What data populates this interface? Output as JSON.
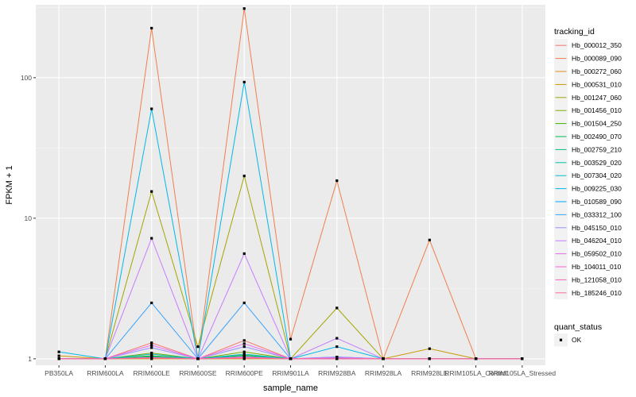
{
  "chart_data": {
    "type": "line",
    "title": "",
    "xlabel": "sample_name",
    "ylabel": "FPKM + 1",
    "y_scale": "log10",
    "ylim": [
      0.9,
      330
    ],
    "y_ticks": [
      1,
      10,
      100
    ],
    "y_tick_labels": [
      "1",
      "10",
      "100"
    ],
    "grid": true,
    "legend_position": "right",
    "categories": [
      "PB350LA",
      "RRIM600LA",
      "RRIM600LE",
      "RRIM600SE",
      "RRIM600PE",
      "RRIM901LA",
      "RRIM928BA",
      "RRIM928LA",
      "RRIM928LE",
      "RRIM105LA_Control",
      "RRIM105LA_Stressed"
    ],
    "legend": {
      "color_title": "tracking_id",
      "shape_title": "quant_status",
      "shape_entries": [
        "OK"
      ]
    },
    "series": [
      {
        "name": "Hb_000012_350",
        "color": "#F8766D",
        "values": [
          1,
          1,
          1.3,
          1,
          1.35,
          1,
          1,
          1,
          1,
          1,
          1
        ]
      },
      {
        "name": "Hb_000089_090",
        "color": "#F07F4C",
        "values": [
          1,
          1,
          225,
          1,
          310,
          1.38,
          18.5,
          1,
          7.0,
          1,
          1
        ]
      },
      {
        "name": "Hb_000272_060",
        "color": "#E3891E",
        "values": [
          1,
          1,
          1.05,
          1,
          1.05,
          1,
          1,
          1,
          1,
          1,
          1
        ]
      },
      {
        "name": "Hb_000531_010",
        "color": "#C99800",
        "values": [
          1.05,
          1,
          1,
          1,
          1,
          1,
          1,
          1,
          1.18,
          1,
          1
        ]
      },
      {
        "name": "Hb_001247_060",
        "color": "#A3A500",
        "values": [
          1,
          1,
          15.5,
          1.22,
          20,
          1,
          2.3,
          1,
          1,
          1,
          1
        ]
      },
      {
        "name": "Hb_001456_010",
        "color": "#7CAE00",
        "values": [
          1,
          1,
          1.1,
          1,
          1.12,
          1,
          1,
          1,
          1,
          1,
          1
        ]
      },
      {
        "name": "Hb_001504_250",
        "color": "#39B600",
        "values": [
          1,
          1,
          1.05,
          1,
          1.06,
          1,
          1,
          1,
          1,
          1,
          1
        ]
      },
      {
        "name": "Hb_002490_070",
        "color": "#00BB4E",
        "values": [
          1,
          1,
          1.03,
          1,
          1.03,
          1,
          1,
          1,
          1,
          1,
          1
        ]
      },
      {
        "name": "Hb_002759_210",
        "color": "#00BF7D",
        "values": [
          1,
          1,
          1.02,
          1,
          1.02,
          1,
          1,
          1,
          1,
          1,
          1
        ]
      },
      {
        "name": "Hb_003529_020",
        "color": "#00C1A3",
        "values": [
          1,
          1,
          1.04,
          1,
          1.05,
          1,
          1.01,
          1,
          1,
          1,
          1
        ]
      },
      {
        "name": "Hb_007304_020",
        "color": "#00BFC4",
        "values": [
          1,
          1,
          1.08,
          1,
          1.08,
          1,
          1.03,
          1,
          1,
          1,
          1
        ]
      },
      {
        "name": "Hb_009225_030",
        "color": "#00B8E7",
        "values": [
          1.12,
          1,
          60,
          1,
          93,
          1,
          1.22,
          1,
          1,
          1,
          1
        ]
      },
      {
        "name": "Hb_010589_090",
        "color": "#00A9FF",
        "values": [
          1,
          1,
          1.02,
          1,
          1.02,
          1,
          1,
          1,
          1,
          1,
          1
        ]
      },
      {
        "name": "Hb_033312_100",
        "color": "#35A2FF",
        "values": [
          1,
          1,
          2.5,
          1,
          2.5,
          1,
          1,
          1,
          1,
          1,
          1
        ]
      },
      {
        "name": "Hb_045150_010",
        "color": "#9590FF",
        "values": [
          1,
          1,
          1.2,
          1,
          1.22,
          1,
          1.03,
          1,
          1,
          1,
          1
        ]
      },
      {
        "name": "Hb_046204_010",
        "color": "#C77CFF",
        "values": [
          1,
          1,
          7.2,
          1,
          5.6,
          1,
          1.4,
          1,
          1,
          1,
          1
        ]
      },
      {
        "name": "Hb_059502_010",
        "color": "#E76BF3",
        "values": [
          1,
          1,
          1.25,
          1,
          1.28,
          1,
          1.02,
          1,
          1,
          1,
          1
        ]
      },
      {
        "name": "Hb_104011_010",
        "color": "#FA62DB",
        "values": [
          1,
          1,
          1.02,
          1,
          1.03,
          1,
          1,
          1,
          1,
          1,
          1
        ]
      },
      {
        "name": "Hb_121058_010",
        "color": "#FF62BC",
        "values": [
          1,
          1,
          1.02,
          1,
          1.02,
          1,
          1,
          1,
          1,
          1,
          1
        ]
      },
      {
        "name": "Hb_185246_010",
        "color": "#FF6C91",
        "values": [
          1,
          1,
          1.01,
          1,
          1.01,
          1,
          1,
          1,
          1,
          1,
          1
        ]
      }
    ]
  }
}
